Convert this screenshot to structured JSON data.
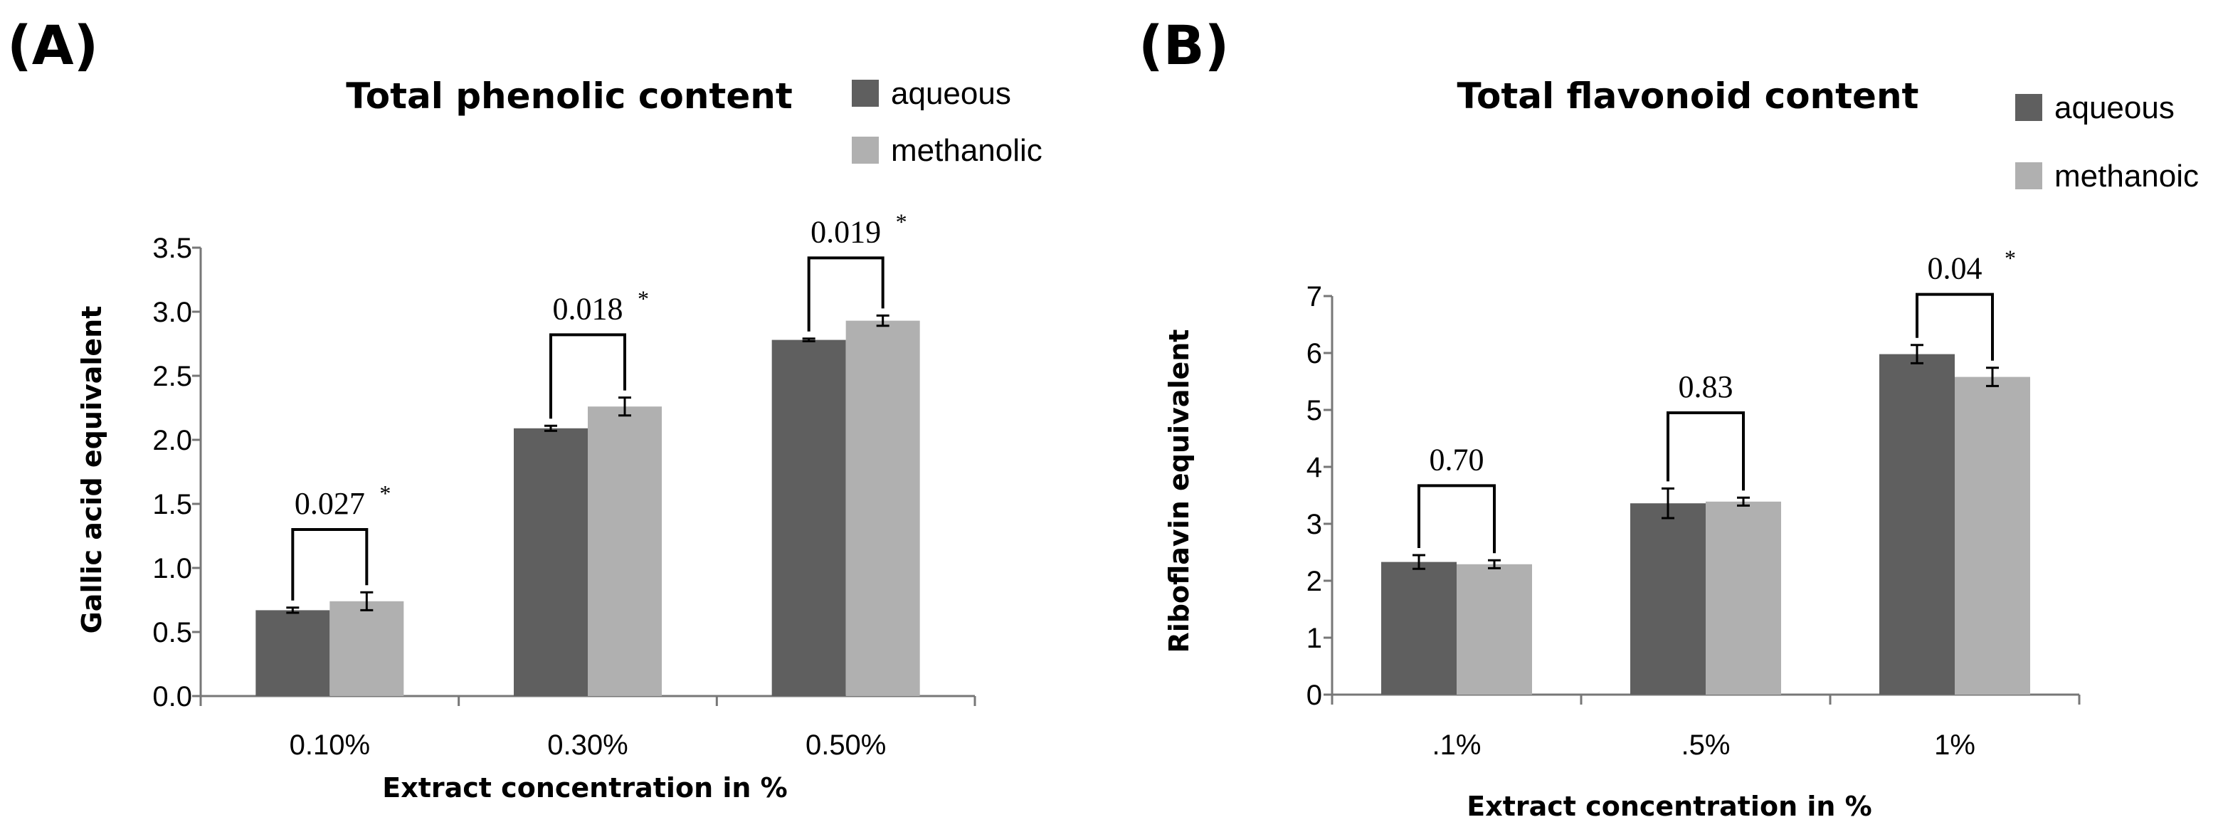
{
  "chart_data": [
    {
      "id": "A",
      "panel_label": "(A)",
      "type": "bar",
      "title": "Total phenolic content",
      "xlabel": "Extract concentration in %",
      "ylabel": "Gallic acid equivalent",
      "categories": [
        "0.10%",
        "0.30%",
        "0.50%"
      ],
      "series": [
        {
          "name": "aqueous",
          "color": "#5f5f5f",
          "values": [
            0.67,
            2.09,
            2.78
          ],
          "errors": [
            0.02,
            0.02,
            0.01
          ]
        },
        {
          "name": "methanolic",
          "color": "#b0b0b0",
          "values": [
            0.74,
            2.26,
            2.93
          ],
          "errors": [
            0.07,
            0.07,
            0.04
          ]
        }
      ],
      "ylim": [
        0,
        3.5
      ],
      "yticks": [
        "0.0",
        "0.5",
        "1.0",
        "1.5",
        "2.0",
        "2.5",
        "3.0",
        "3.5"
      ],
      "ytick_values": [
        0,
        0.5,
        1.0,
        1.5,
        2.0,
        2.5,
        3.0,
        3.5
      ],
      "annotations": [
        {
          "label": "0.027",
          "star": "*",
          "bracket_y": 1.3
        },
        {
          "label": "0.018",
          "star": "*",
          "bracket_y": 2.82
        },
        {
          "label": "0.019",
          "star": "*",
          "bracket_y": 3.42
        }
      ]
    },
    {
      "id": "B",
      "panel_label": "(B)",
      "type": "bar",
      "title": "Total flavonoid content",
      "xlabel": "Extract concentration in %",
      "ylabel": "Riboflavin equivalent",
      "categories": [
        ".1%",
        ".5%",
        "1%"
      ],
      "series": [
        {
          "name": "aqueous",
          "color": "#5f5f5f",
          "values": [
            2.33,
            3.36,
            5.98
          ],
          "errors": [
            0.12,
            0.26,
            0.16
          ]
        },
        {
          "name": "methanoic",
          "color": "#b0b0b0",
          "values": [
            2.29,
            3.39,
            5.58
          ],
          "errors": [
            0.07,
            0.07,
            0.16
          ]
        }
      ],
      "ylim": [
        0,
        7
      ],
      "yticks": [
        "0",
        "1",
        "2",
        "3",
        "4",
        "5",
        "6",
        "7"
      ],
      "ytick_values": [
        0,
        1,
        2,
        3,
        4,
        5,
        6,
        7
      ],
      "annotations": [
        {
          "label": "0.70",
          "star": "",
          "bracket_y": 3.67
        },
        {
          "label": "0.83",
          "star": "",
          "bracket_y": 4.95
        },
        {
          "label": "0.04",
          "star": "*",
          "bracket_y": 7.03
        }
      ]
    }
  ]
}
